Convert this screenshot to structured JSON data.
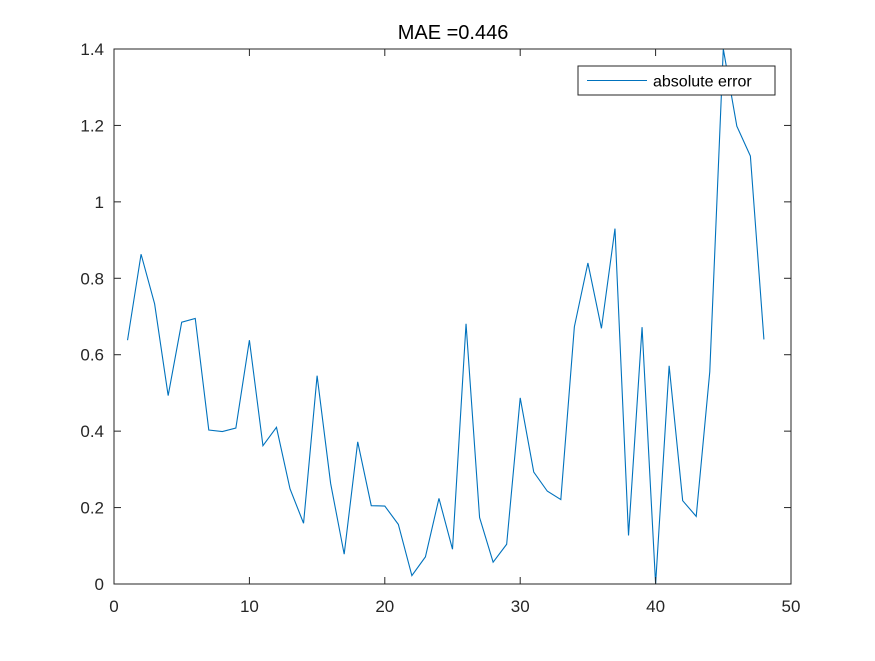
{
  "chart_data": {
    "type": "line",
    "title": "MAE =0.446",
    "xlabel": "",
    "ylabel": "",
    "xlim": [
      0,
      50
    ],
    "ylim": [
      0,
      1.4
    ],
    "xticks": [
      "0",
      "10",
      "20",
      "30",
      "40",
      "50"
    ],
    "yticks": [
      "0",
      "0.2",
      "0.4",
      "0.6",
      "0.8",
      "1",
      "1.2",
      "1.4"
    ],
    "grid": false,
    "legend_position": "top-right",
    "series": [
      {
        "name": "absolute error",
        "color": "#0072BD",
        "x": [
          1,
          2,
          3,
          4,
          5,
          6,
          7,
          8,
          9,
          10,
          11,
          12,
          13,
          14,
          15,
          16,
          17,
          18,
          19,
          20,
          21,
          22,
          23,
          24,
          25,
          26,
          27,
          28,
          29,
          30,
          31,
          32,
          33,
          34,
          35,
          36,
          37,
          38,
          39,
          40,
          41,
          42,
          43,
          44,
          45,
          46,
          47,
          48
        ],
        "values": [
          0.638,
          0.863,
          0.733,
          0.493,
          0.685,
          0.695,
          0.403,
          0.399,
          0.408,
          0.638,
          0.362,
          0.41,
          0.249,
          0.159,
          0.545,
          0.263,
          0.078,
          0.372,
          0.205,
          0.204,
          0.156,
          0.022,
          0.071,
          0.224,
          0.091,
          0.681,
          0.174,
          0.057,
          0.104,
          0.487,
          0.293,
          0.243,
          0.221,
          0.673,
          0.84,
          0.669,
          0.93,
          0.127,
          0.672,
          0.0,
          0.571,
          0.218,
          0.177,
          0.555,
          1.4,
          1.198,
          1.12,
          0.64
        ]
      }
    ]
  }
}
